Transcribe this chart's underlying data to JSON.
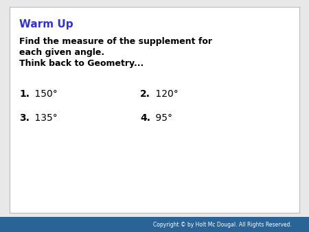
{
  "title": "Warm Up",
  "title_color": "#3333cc",
  "body_line1": "Find the measure of the supplement for",
  "body_line2": "each given angle.",
  "body_line3": "Think back to Geometry...",
  "item1_num": "1.",
  "item1_val": " 150°",
  "item2_num": "2.",
  "item2_val": " 120°",
  "item3_num": "3.",
  "item3_val": " 135°",
  "item4_num": "4.",
  "item4_val": " 95°",
  "copyright_text": "Copyright © by Holt Mc Dougal. All Rights Reserved.",
  "copyright_bg": "#2a6496",
  "copyright_text_color": "#ffffff",
  "bg_color": "#ffffff",
  "box_edge_color": "#bbbbbb",
  "outer_bg": "#e8e8e8"
}
